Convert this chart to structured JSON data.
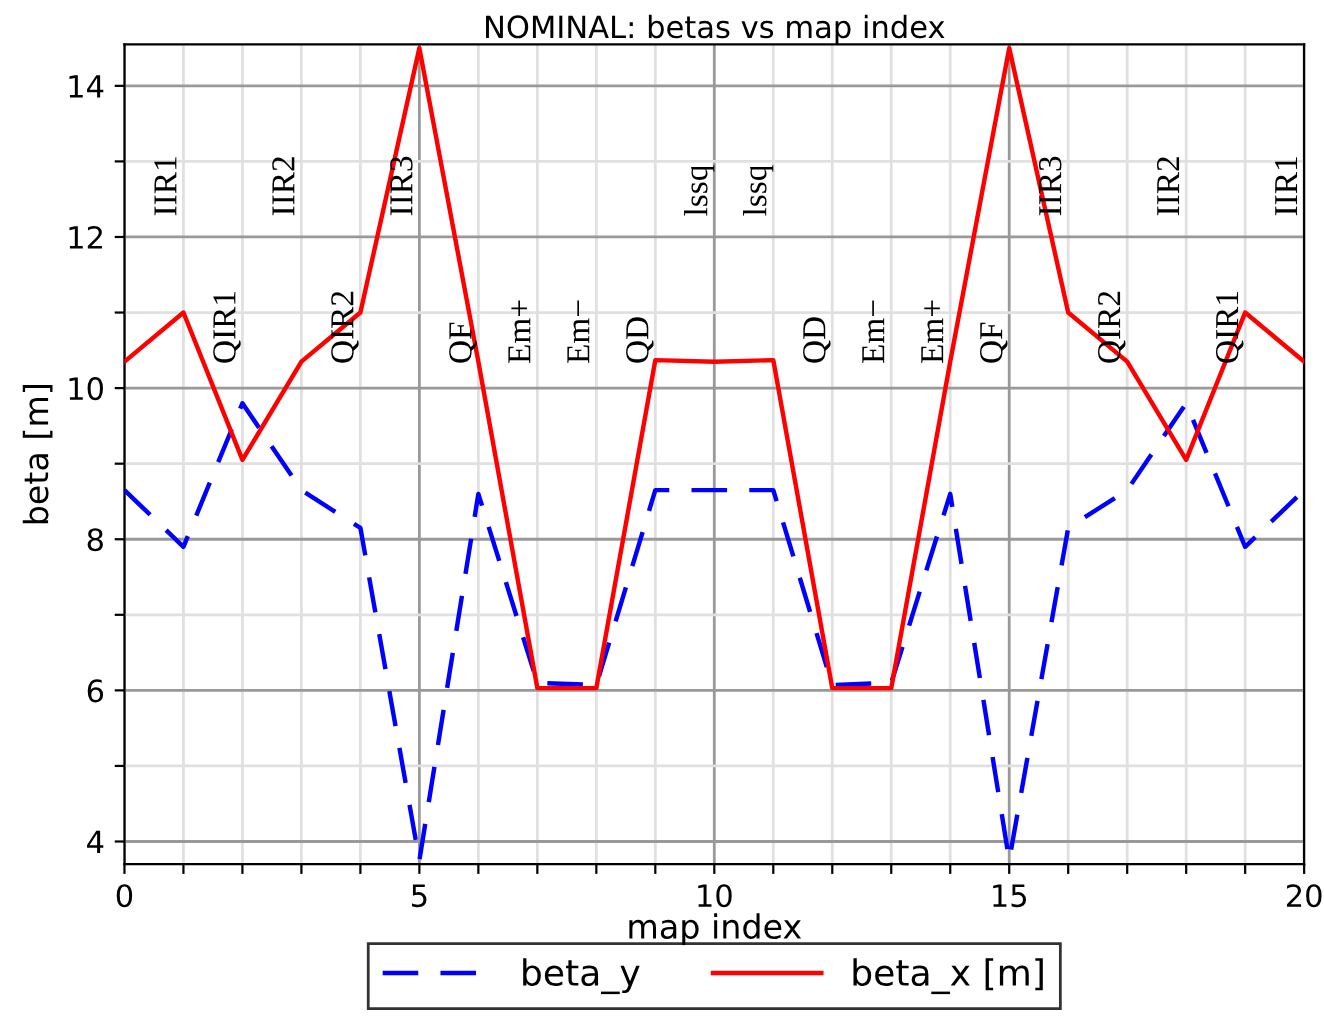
{
  "chart_data": {
    "type": "line",
    "title": "NOMINAL: betas vs map index",
    "xlabel": "map index",
    "ylabel": "beta [m]",
    "x": [
      0,
      1,
      2,
      3,
      4,
      5,
      6,
      7,
      8,
      9,
      10,
      11,
      12,
      13,
      14,
      15,
      16,
      17,
      18,
      19,
      20
    ],
    "series": [
      {
        "name": "beta_y",
        "color": "#0000ff",
        "line_style": "dashed",
        "values": [
          8.65,
          7.9,
          9.8,
          8.65,
          8.15,
          3.75,
          8.6,
          6.1,
          6.07,
          8.65,
          8.65,
          8.65,
          6.07,
          6.1,
          8.6,
          3.75,
          8.15,
          8.65,
          9.8,
          7.9,
          8.65
        ]
      },
      {
        "name": "beta_x [m]",
        "color": "#ff0000",
        "line_style": "solid",
        "values": [
          10.35,
          11.0,
          9.05,
          10.35,
          11.0,
          14.5,
          10.35,
          6.03,
          6.03,
          10.37,
          10.35,
          10.37,
          6.03,
          6.03,
          10.35,
          14.5,
          11.0,
          10.35,
          9.05,
          11.0,
          10.35
        ]
      }
    ],
    "xlim": [
      0,
      20
    ],
    "ylim": [
      3.7,
      14.55
    ],
    "xticks": [
      0,
      {
        "value": 1,
        "label": null
      },
      {
        "value": 2,
        "label": null
      },
      {
        "value": 3,
        "label": null
      },
      {
        "value": 4,
        "label": null
      },
      5,
      {
        "value": 6,
        "label": null
      },
      {
        "value": 7,
        "label": null
      },
      {
        "value": 8,
        "label": null
      },
      {
        "value": 9,
        "label": null
      },
      10,
      {
        "value": 11,
        "label": null
      },
      {
        "value": 12,
        "label": null
      },
      {
        "value": 13,
        "label": null
      },
      {
        "value": 14,
        "label": null
      },
      15,
      {
        "value": 16,
        "label": null
      },
      {
        "value": 17,
        "label": null
      },
      {
        "value": 18,
        "label": null
      },
      {
        "value": 19,
        "label": null
      },
      20
    ],
    "yticks": [
      4,
      {
        "value": 5,
        "label": null
      },
      6,
      {
        "value": 7,
        "label": null
      },
      8,
      {
        "value": 9,
        "label": null
      },
      10,
      {
        "value": 11,
        "label": null
      },
      12,
      {
        "value": 13,
        "label": null
      },
      14
    ],
    "grid": true,
    "legend": "bottom",
    "marker": "none",
    "annotations": [
      "IIR1",
      "QIR1",
      "IIR2",
      "QIR2",
      "IIR3",
      "QF",
      "Em+",
      "Em−",
      "QD",
      "lssq",
      "lssq",
      "QD",
      "Em−",
      "Em+",
      "QF",
      "IIR3",
      "QIR2",
      "IIR2",
      "QIR1",
      "IIR1"
    ]
  }
}
